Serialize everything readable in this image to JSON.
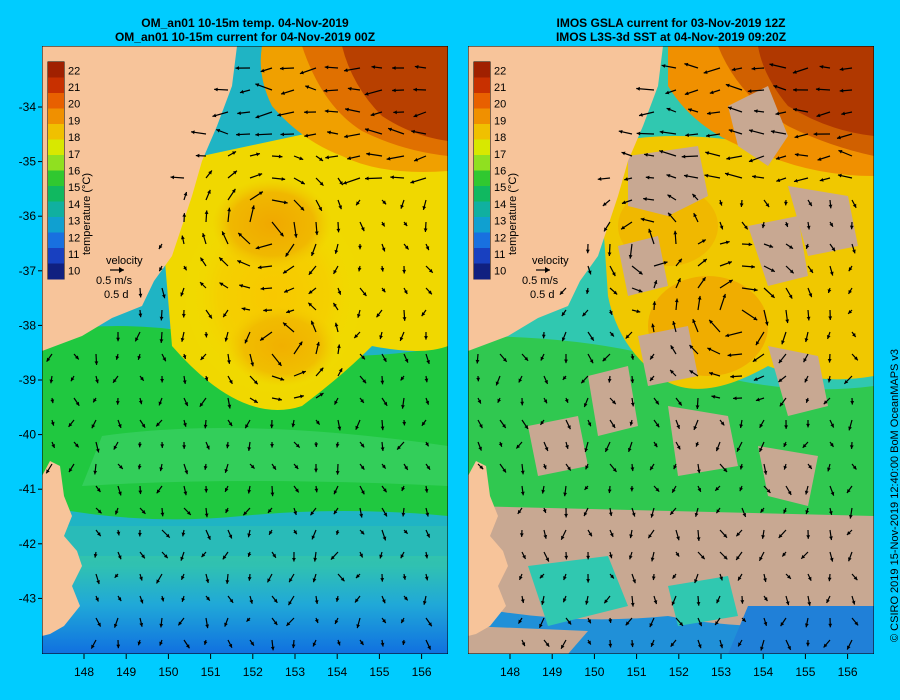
{
  "panels": [
    {
      "title_line1": "OM_an01 10-15m temp. 04-Nov-2019",
      "title_line2": "OM_an01 10-15m current for 04-Nov-2019 00Z",
      "legend": {
        "label": "velocity",
        "speed": "0.5 m/s",
        "duration": "0.5 d"
      },
      "colorbar_label": "temperature (°C)"
    },
    {
      "title_line1": "IMOS GSLA current for 03-Nov-2019 12Z",
      "title_line2": "IMOS L3S-3d SST at 04-Nov-2019 09:20Z",
      "legend": {
        "label": "velocity",
        "speed": "0.5 m/s",
        "duration": "0.5 d"
      },
      "colorbar_label": "temperature (°C)"
    }
  ],
  "colorbar_ticks": [
    "22",
    "21",
    "20",
    "19",
    "18",
    "17",
    "16",
    "15",
    "14",
    "13",
    "12",
    "11",
    "10"
  ],
  "y_ticks": [
    "-34",
    "-35",
    "-36",
    "-37",
    "-38",
    "-39",
    "-40",
    "-41",
    "-42",
    "-43"
  ],
  "x_ticks": [
    "148",
    "149",
    "150",
    "151",
    "152",
    "153",
    "154",
    "155",
    "156"
  ],
  "credit": "© CSIRO 2019   15-Nov-2019 12:40:00 BoM OceanMAPS v3",
  "colors": {
    "background": "#00ccff",
    "land": "#f7c49a",
    "missing_data": "#c8a892",
    "arrow": "#000000"
  }
}
